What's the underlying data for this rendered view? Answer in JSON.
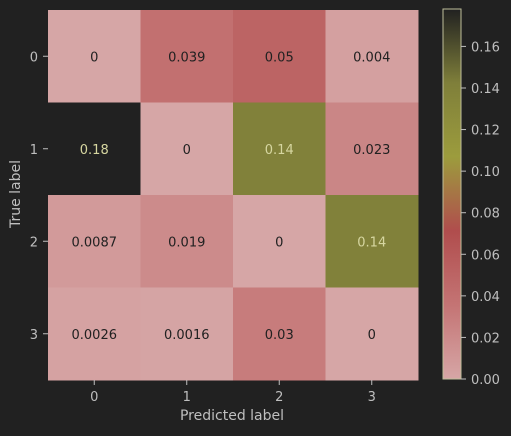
{
  "chart_data": {
    "type": "heatmap",
    "xlabel": "Predicted label",
    "ylabel": "True label",
    "x_tick_labels": [
      "0",
      "1",
      "2",
      "3"
    ],
    "y_tick_labels": [
      "0",
      "1",
      "2",
      "3"
    ],
    "cells": [
      [
        {
          "value": 0,
          "label": "0"
        },
        {
          "value": 0.039,
          "label": "0.039"
        },
        {
          "value": 0.05,
          "label": "0.05"
        },
        {
          "value": 0.004,
          "label": "0.004"
        }
      ],
      [
        {
          "value": 0.18,
          "label": "0.18"
        },
        {
          "value": 0,
          "label": "0"
        },
        {
          "value": 0.14,
          "label": "0.14"
        },
        {
          "value": 0.023,
          "label": "0.023"
        }
      ],
      [
        {
          "value": 0.0087,
          "label": "0.0087"
        },
        {
          "value": 0.019,
          "label": "0.019"
        },
        {
          "value": 0,
          "label": "0"
        },
        {
          "value": 0.14,
          "label": "0.14"
        }
      ],
      [
        {
          "value": 0.0026,
          "label": "0.0026"
        },
        {
          "value": 0.0016,
          "label": "0.0016"
        },
        {
          "value": 0.03,
          "label": "0.03"
        },
        {
          "value": 0,
          "label": "0"
        }
      ]
    ],
    "colorbar": {
      "min": 0,
      "max": 0.178,
      "ticks": [
        0,
        0.02,
        0.04,
        0.06,
        0.08,
        0.1,
        0.12,
        0.14,
        0.16
      ],
      "tick_labels": [
        "0.00",
        "0.02",
        "0.04",
        "0.06",
        "0.08",
        "0.10",
        "0.12",
        "0.14",
        "0.16"
      ]
    },
    "colors": {
      "background": "#212121",
      "text": "#bfbfbf",
      "cell_dark_text": "#212121",
      "cell_light_text": "#d6d6a0",
      "colormap": [
        "#d6a6a6",
        "#c47474",
        "#b04d4d",
        "#9c9c3d",
        "#7f7f3a",
        "#212121"
      ]
    }
  }
}
